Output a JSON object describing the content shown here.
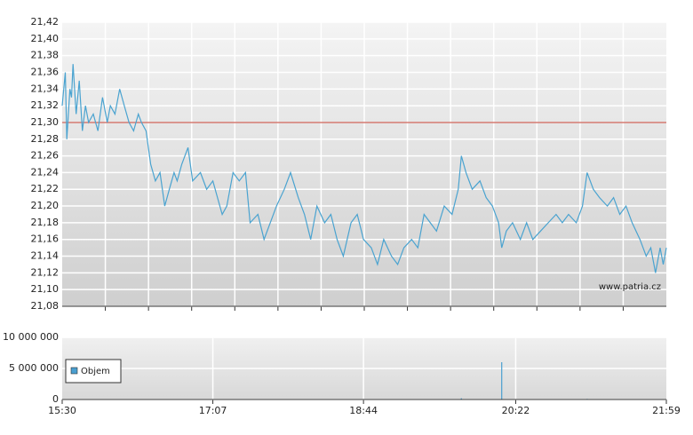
{
  "chart_data": [
    {
      "type": "line",
      "annotation": "www.patria.cz",
      "reference_line": 21.3,
      "reference_color": "#c0392b",
      "xlim": [
        "15:30",
        "21:59"
      ],
      "ylim": [
        21.08,
        21.42
      ],
      "yticks": [
        {
          "value": 21.08,
          "label": "21,08"
        },
        {
          "value": 21.1,
          "label": "21,10"
        },
        {
          "value": 21.12,
          "label": "21,12"
        },
        {
          "value": 21.14,
          "label": "21,14"
        },
        {
          "value": 21.16,
          "label": "21,16"
        },
        {
          "value": 21.18,
          "label": "21,18"
        },
        {
          "value": 21.2,
          "label": "21,20"
        },
        {
          "value": 21.22,
          "label": "21,22"
        },
        {
          "value": 21.24,
          "label": "21,24"
        },
        {
          "value": 21.26,
          "label": "21,26"
        },
        {
          "value": 21.28,
          "label": "21,28"
        },
        {
          "value": 21.3,
          "label": "21,30"
        },
        {
          "value": 21.32,
          "label": "21,32"
        },
        {
          "value": 21.34,
          "label": "21,34"
        },
        {
          "value": 21.36,
          "label": "21,36"
        },
        {
          "value": 21.38,
          "label": "21,38"
        },
        {
          "value": 21.4,
          "label": "21,40"
        },
        {
          "value": 21.42,
          "label": "21,42"
        }
      ],
      "grid": true,
      "x": [
        "15:30",
        "15:32",
        "15:33",
        "15:35",
        "15:36",
        "15:37",
        "15:39",
        "15:41",
        "15:43",
        "15:45",
        "15:47",
        "15:50",
        "15:53",
        "15:56",
        "15:59",
        "16:01",
        "16:04",
        "16:07",
        "16:10",
        "16:13",
        "16:16",
        "16:19",
        "16:21",
        "16:24",
        "16:27",
        "16:30",
        "16:33",
        "16:36",
        "16:39",
        "16:42",
        "16:44",
        "16:47",
        "16:51",
        "16:54",
        "16:59",
        "17:03",
        "17:07",
        "17:10",
        "17:13",
        "17:16",
        "17:20",
        "17:24",
        "17:28",
        "17:31",
        "17:36",
        "17:40",
        "17:44",
        "17:48",
        "17:53",
        "17:57",
        "18:02",
        "18:06",
        "18:10",
        "18:14",
        "18:19",
        "18:23",
        "18:27",
        "18:31",
        "18:36",
        "18:40",
        "18:44",
        "18:49",
        "18:53",
        "18:57",
        "19:02",
        "19:06",
        "19:10",
        "19:15",
        "19:19",
        "19:23",
        "19:27",
        "19:31",
        "19:36",
        "19:41",
        "19:45",
        "19:47",
        "19:50",
        "19:54",
        "19:59",
        "20:03",
        "20:07",
        "20:11",
        "20:13",
        "20:16",
        "20:20",
        "20:25",
        "20:29",
        "20:33",
        "20:38",
        "20:43",
        "20:48",
        "20:52",
        "20:56",
        "21:01",
        "21:05",
        "21:08",
        "21:12",
        "21:16",
        "21:21",
        "21:25",
        "21:29",
        "21:33",
        "21:37",
        "21:42",
        "21:46",
        "21:49",
        "21:52",
        "21:55",
        "21:57",
        "21:59"
      ],
      "series": [
        {
          "color": "#4aa3d0",
          "values": [
            21.32,
            21.36,
            21.28,
            21.34,
            21.33,
            21.37,
            21.31,
            21.35,
            21.29,
            21.32,
            21.3,
            21.31,
            21.29,
            21.33,
            21.3,
            21.32,
            21.31,
            21.34,
            21.32,
            21.3,
            21.29,
            21.31,
            21.3,
            21.29,
            21.25,
            21.23,
            21.24,
            21.2,
            21.22,
            21.24,
            21.23,
            21.25,
            21.27,
            21.23,
            21.24,
            21.22,
            21.23,
            21.21,
            21.19,
            21.2,
            21.24,
            21.23,
            21.24,
            21.18,
            21.19,
            21.16,
            21.18,
            21.2,
            21.22,
            21.24,
            21.21,
            21.19,
            21.16,
            21.2,
            21.18,
            21.19,
            21.16,
            21.14,
            21.18,
            21.19,
            21.16,
            21.15,
            21.13,
            21.16,
            21.14,
            21.13,
            21.15,
            21.16,
            21.15,
            21.19,
            21.18,
            21.17,
            21.2,
            21.19,
            21.22,
            21.26,
            21.24,
            21.22,
            21.23,
            21.21,
            21.2,
            21.18,
            21.15,
            21.17,
            21.18,
            21.16,
            21.18,
            21.16,
            21.17,
            21.18,
            21.19,
            21.18,
            21.19,
            21.18,
            21.2,
            21.24,
            21.22,
            21.21,
            21.2,
            21.21,
            21.19,
            21.2,
            21.18,
            21.16,
            21.14,
            21.15,
            21.12,
            21.15,
            21.13,
            21.15
          ]
        }
      ]
    },
    {
      "type": "bar",
      "xlim": [
        "15:30",
        "21:59"
      ],
      "xticks": [
        "15:30",
        "17:07",
        "18:44",
        "20:22",
        "21:59"
      ],
      "ylim": [
        0,
        10000000
      ],
      "yticks": [
        0,
        {
          "value": 5000000,
          "label": "5 000 000"
        },
        {
          "value": 10000000,
          "label": "10 000 000"
        }
      ],
      "grid": true,
      "legend": "lower left",
      "x": [
        "19:47",
        "20:13",
        "21:08"
      ],
      "series": [
        {
          "name": "Objem",
          "color": "#4a9fd0",
          "values": [
            200000,
            6000000,
            100000
          ]
        }
      ]
    }
  ]
}
